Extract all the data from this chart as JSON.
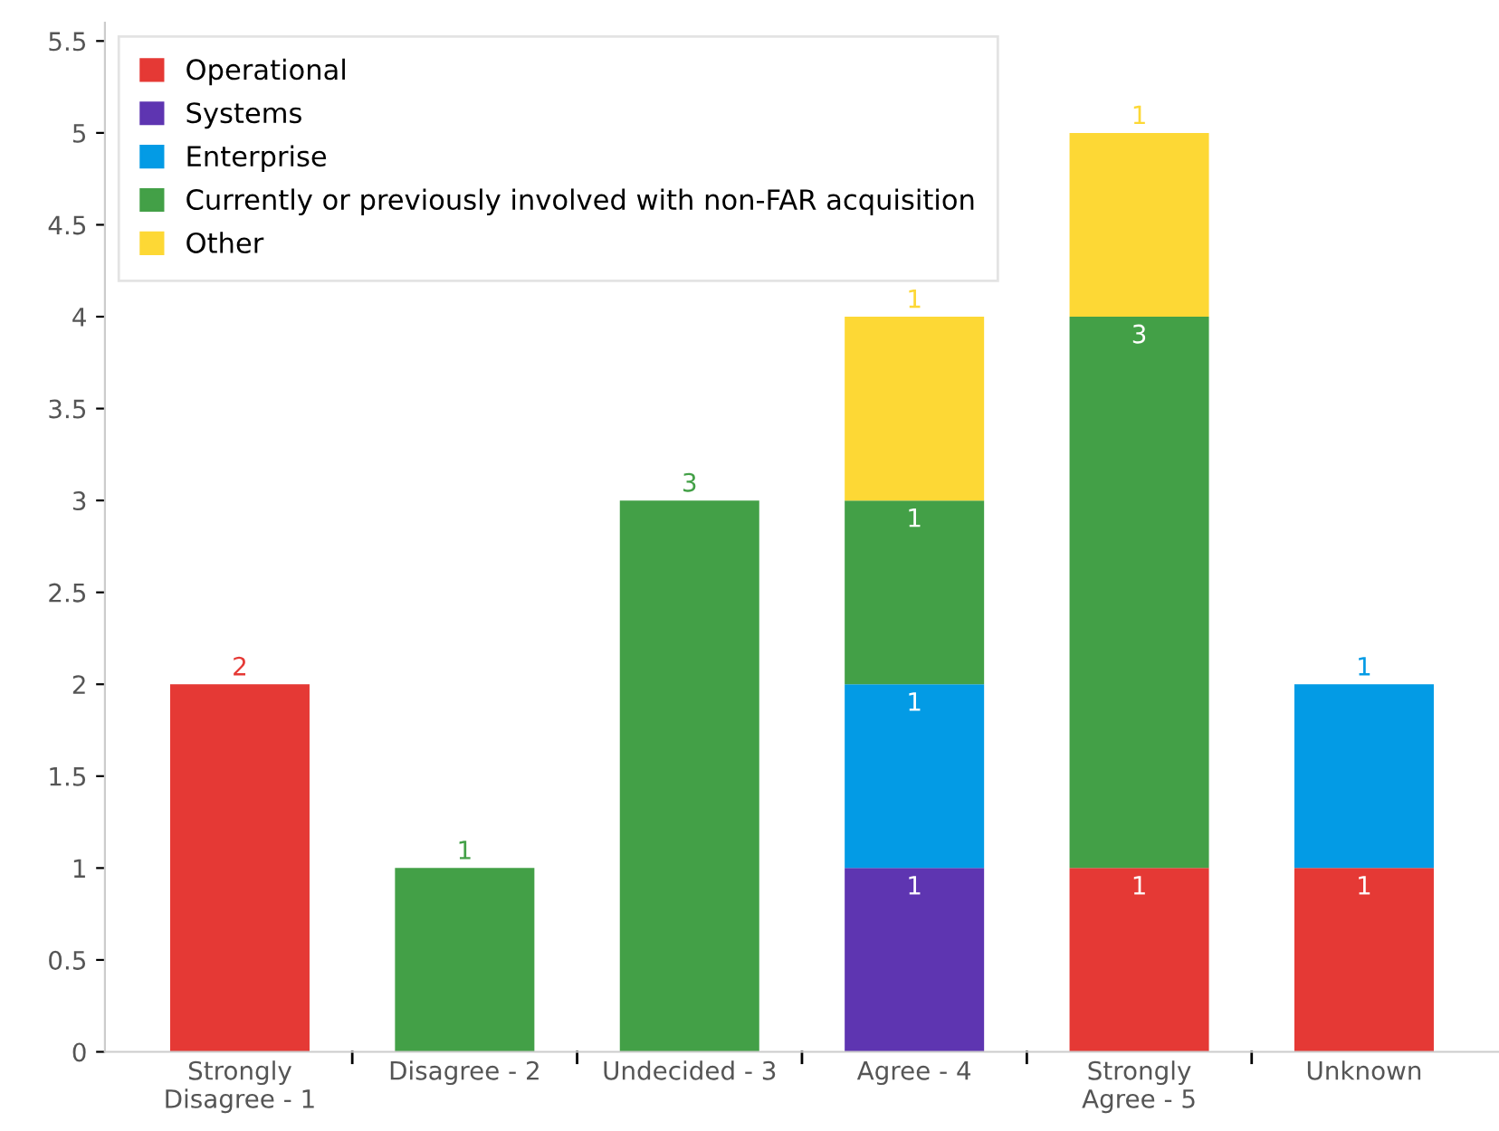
{
  "chart_data": {
    "type": "bar",
    "stacked": true,
    "data_labels": true,
    "legend": "top left",
    "grid": false,
    "categories": [
      "Strongly\nDisagree - 1",
      "Disagree - 2",
      "Undecided - 3",
      "Agree - 4",
      "Strongly\nAgree - 5",
      "Unknown"
    ],
    "series": [
      {
        "name": "Operational",
        "color": "#e53935",
        "values": [
          2,
          null,
          null,
          null,
          1,
          1
        ]
      },
      {
        "name": "Systems",
        "color": "#5e35b1",
        "values": [
          null,
          null,
          null,
          1,
          null,
          null
        ]
      },
      {
        "name": "Enterprise",
        "color": "#039be5",
        "values": [
          null,
          null,
          null,
          1,
          null,
          1
        ]
      },
      {
        "name": "Currently or previously involved with non-FAR acquisition",
        "color": "#43a047",
        "values": [
          null,
          1,
          3,
          1,
          3,
          null
        ]
      },
      {
        "name": "Other",
        "color": "#fdd835",
        "values": [
          null,
          null,
          null,
          1,
          1,
          null
        ]
      }
    ],
    "ylim": [
      0,
      5.6
    ],
    "yticks": [
      0,
      0.5,
      1,
      1.5,
      2,
      2.5,
      3,
      3.5,
      4,
      4.5,
      5,
      5.5
    ]
  }
}
